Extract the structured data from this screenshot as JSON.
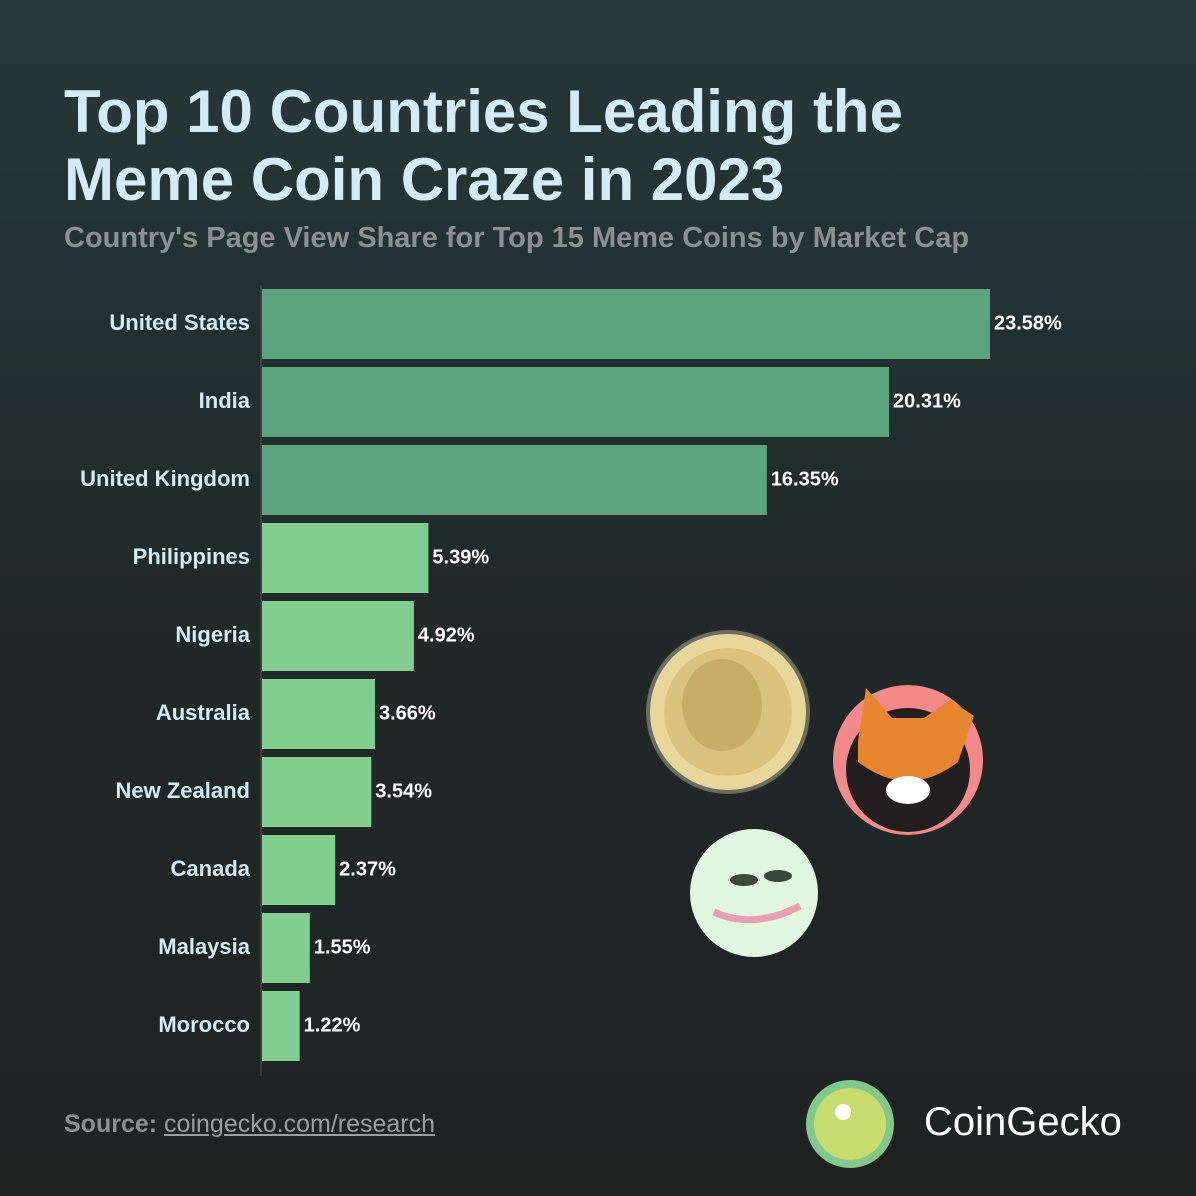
{
  "chart_data": {
    "type": "bar",
    "orientation": "horizontal",
    "title": "Top 10 Countries Leading the Meme Coin Craze in 2023",
    "subtitle": "Country's Page View Share for Top 15 Meme Coins by Market Cap",
    "categories": [
      "United States",
      "India",
      "United Kingdom",
      "Philippines",
      "Nigeria",
      "Australia",
      "New Zealand",
      "Canada",
      "Malaysia",
      "Morocco"
    ],
    "values": [
      23.58,
      20.31,
      16.35,
      5.39,
      4.92,
      3.66,
      3.54,
      2.37,
      1.55,
      1.22
    ],
    "value_labels": [
      "23.58%",
      "20.31%",
      "16.35%",
      "5.39%",
      "4.92%",
      "3.66%",
      "3.54%",
      "2.37%",
      "1.55%",
      "1.22%"
    ],
    "bar_colors": [
      "#5aa47e",
      "#5aa47e",
      "#5aa47e",
      "#80cf8e",
      "#80cf8e",
      "#80cf8e",
      "#80cf8e",
      "#80cf8e",
      "#80cf8e",
      "#80cf8e"
    ]
  },
  "footer": {
    "source_label": "Source:",
    "source_link": "coingecko.com/research",
    "brand": "CoinGecko"
  }
}
